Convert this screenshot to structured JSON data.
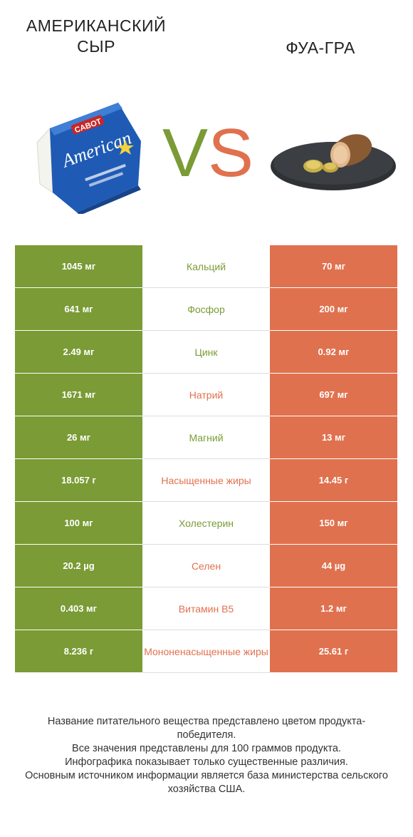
{
  "header": {
    "left_title": "АМЕРИКАНСКИЙ СЫР",
    "right_title": "ФУА-ГРА",
    "vs_v": "V",
    "vs_s": "S"
  },
  "colors": {
    "left_accent": "#7a9b35",
    "right_accent": "#e0714f"
  },
  "left_image_text": {
    "brand": "CABOT",
    "product": "American"
  },
  "rows": [
    {
      "left": "1045 мг",
      "nutrient": "Кальций",
      "right": "70 мг",
      "winner": "left"
    },
    {
      "left": "641 мг",
      "nutrient": "Фосфор",
      "right": "200 мг",
      "winner": "left"
    },
    {
      "left": "2.49 мг",
      "nutrient": "Цинк",
      "right": "0.92 мг",
      "winner": "left"
    },
    {
      "left": "1671 мг",
      "nutrient": "Натрий",
      "right": "697 мг",
      "winner": "right"
    },
    {
      "left": "26 мг",
      "nutrient": "Магний",
      "right": "13 мг",
      "winner": "left"
    },
    {
      "left": "18.057 г",
      "nutrient": "Насыщенные жиры",
      "right": "14.45 г",
      "winner": "right"
    },
    {
      "left": "100 мг",
      "nutrient": "Холестерин",
      "right": "150 мг",
      "winner": "left"
    },
    {
      "left": "20.2 µg",
      "nutrient": "Селен",
      "right": "44 µg",
      "winner": "right"
    },
    {
      "left": "0.403 мг",
      "nutrient": "Витамин B5",
      "right": "1.2 мг",
      "winner": "right"
    },
    {
      "left": "8.236 г",
      "nutrient": "Мононенасыщенные жиры",
      "right": "25.61 г",
      "winner": "right"
    }
  ],
  "footer": {
    "line1": "Название питательного вещества представлено цветом продукта-победителя.",
    "line2": "Все значения представлены для 100 граммов продукта.",
    "line3": "Инфографика показывает только существенные различия.",
    "line4": "Основным источником информации является база министерства сельского хозяйства США."
  }
}
